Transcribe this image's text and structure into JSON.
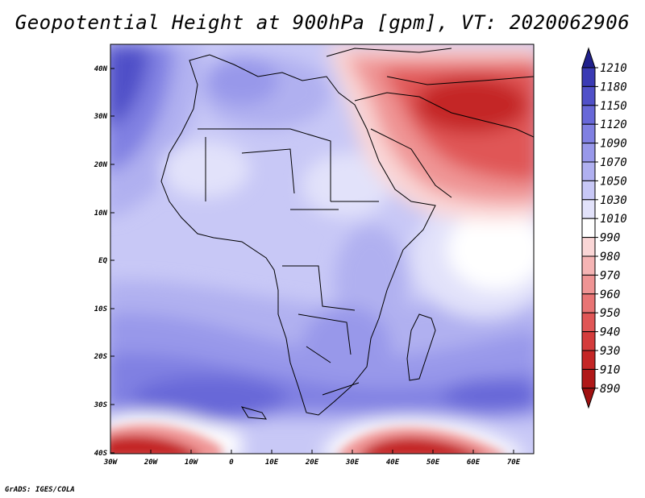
{
  "title": "Geopotential Height at 900hPa [gpm], VT: 2020062906",
  "credit": "GrADS: IGES/COLA",
  "map": {
    "lat_labels": [
      "40N",
      "30N",
      "20N",
      "10N",
      "EQ",
      "10S",
      "20S",
      "30S",
      "40S"
    ],
    "lon_labels": [
      "30W",
      "20W",
      "10W",
      "0",
      "10E",
      "20E",
      "30E",
      "40E",
      "50E",
      "60E",
      "70E"
    ]
  },
  "colorbar": {
    "levels": [
      "1210",
      "1180",
      "1150",
      "1120",
      "1090",
      "1070",
      "1050",
      "1030",
      "1010",
      "990",
      "980",
      "970",
      "960",
      "950",
      "940",
      "930",
      "910",
      "890"
    ],
    "colors": [
      "#20208c",
      "#3a3ab4",
      "#5050c8",
      "#6868d8",
      "#8080e2",
      "#9898ea",
      "#b0b0f0",
      "#c8c8f6",
      "#e2e2fa",
      "#ffffff",
      "#fad6d6",
      "#f5b4b4",
      "#ef9494",
      "#e87474",
      "#e05656",
      "#d43c3c",
      "#c42626",
      "#b01818",
      "#a01010"
    ]
  }
}
